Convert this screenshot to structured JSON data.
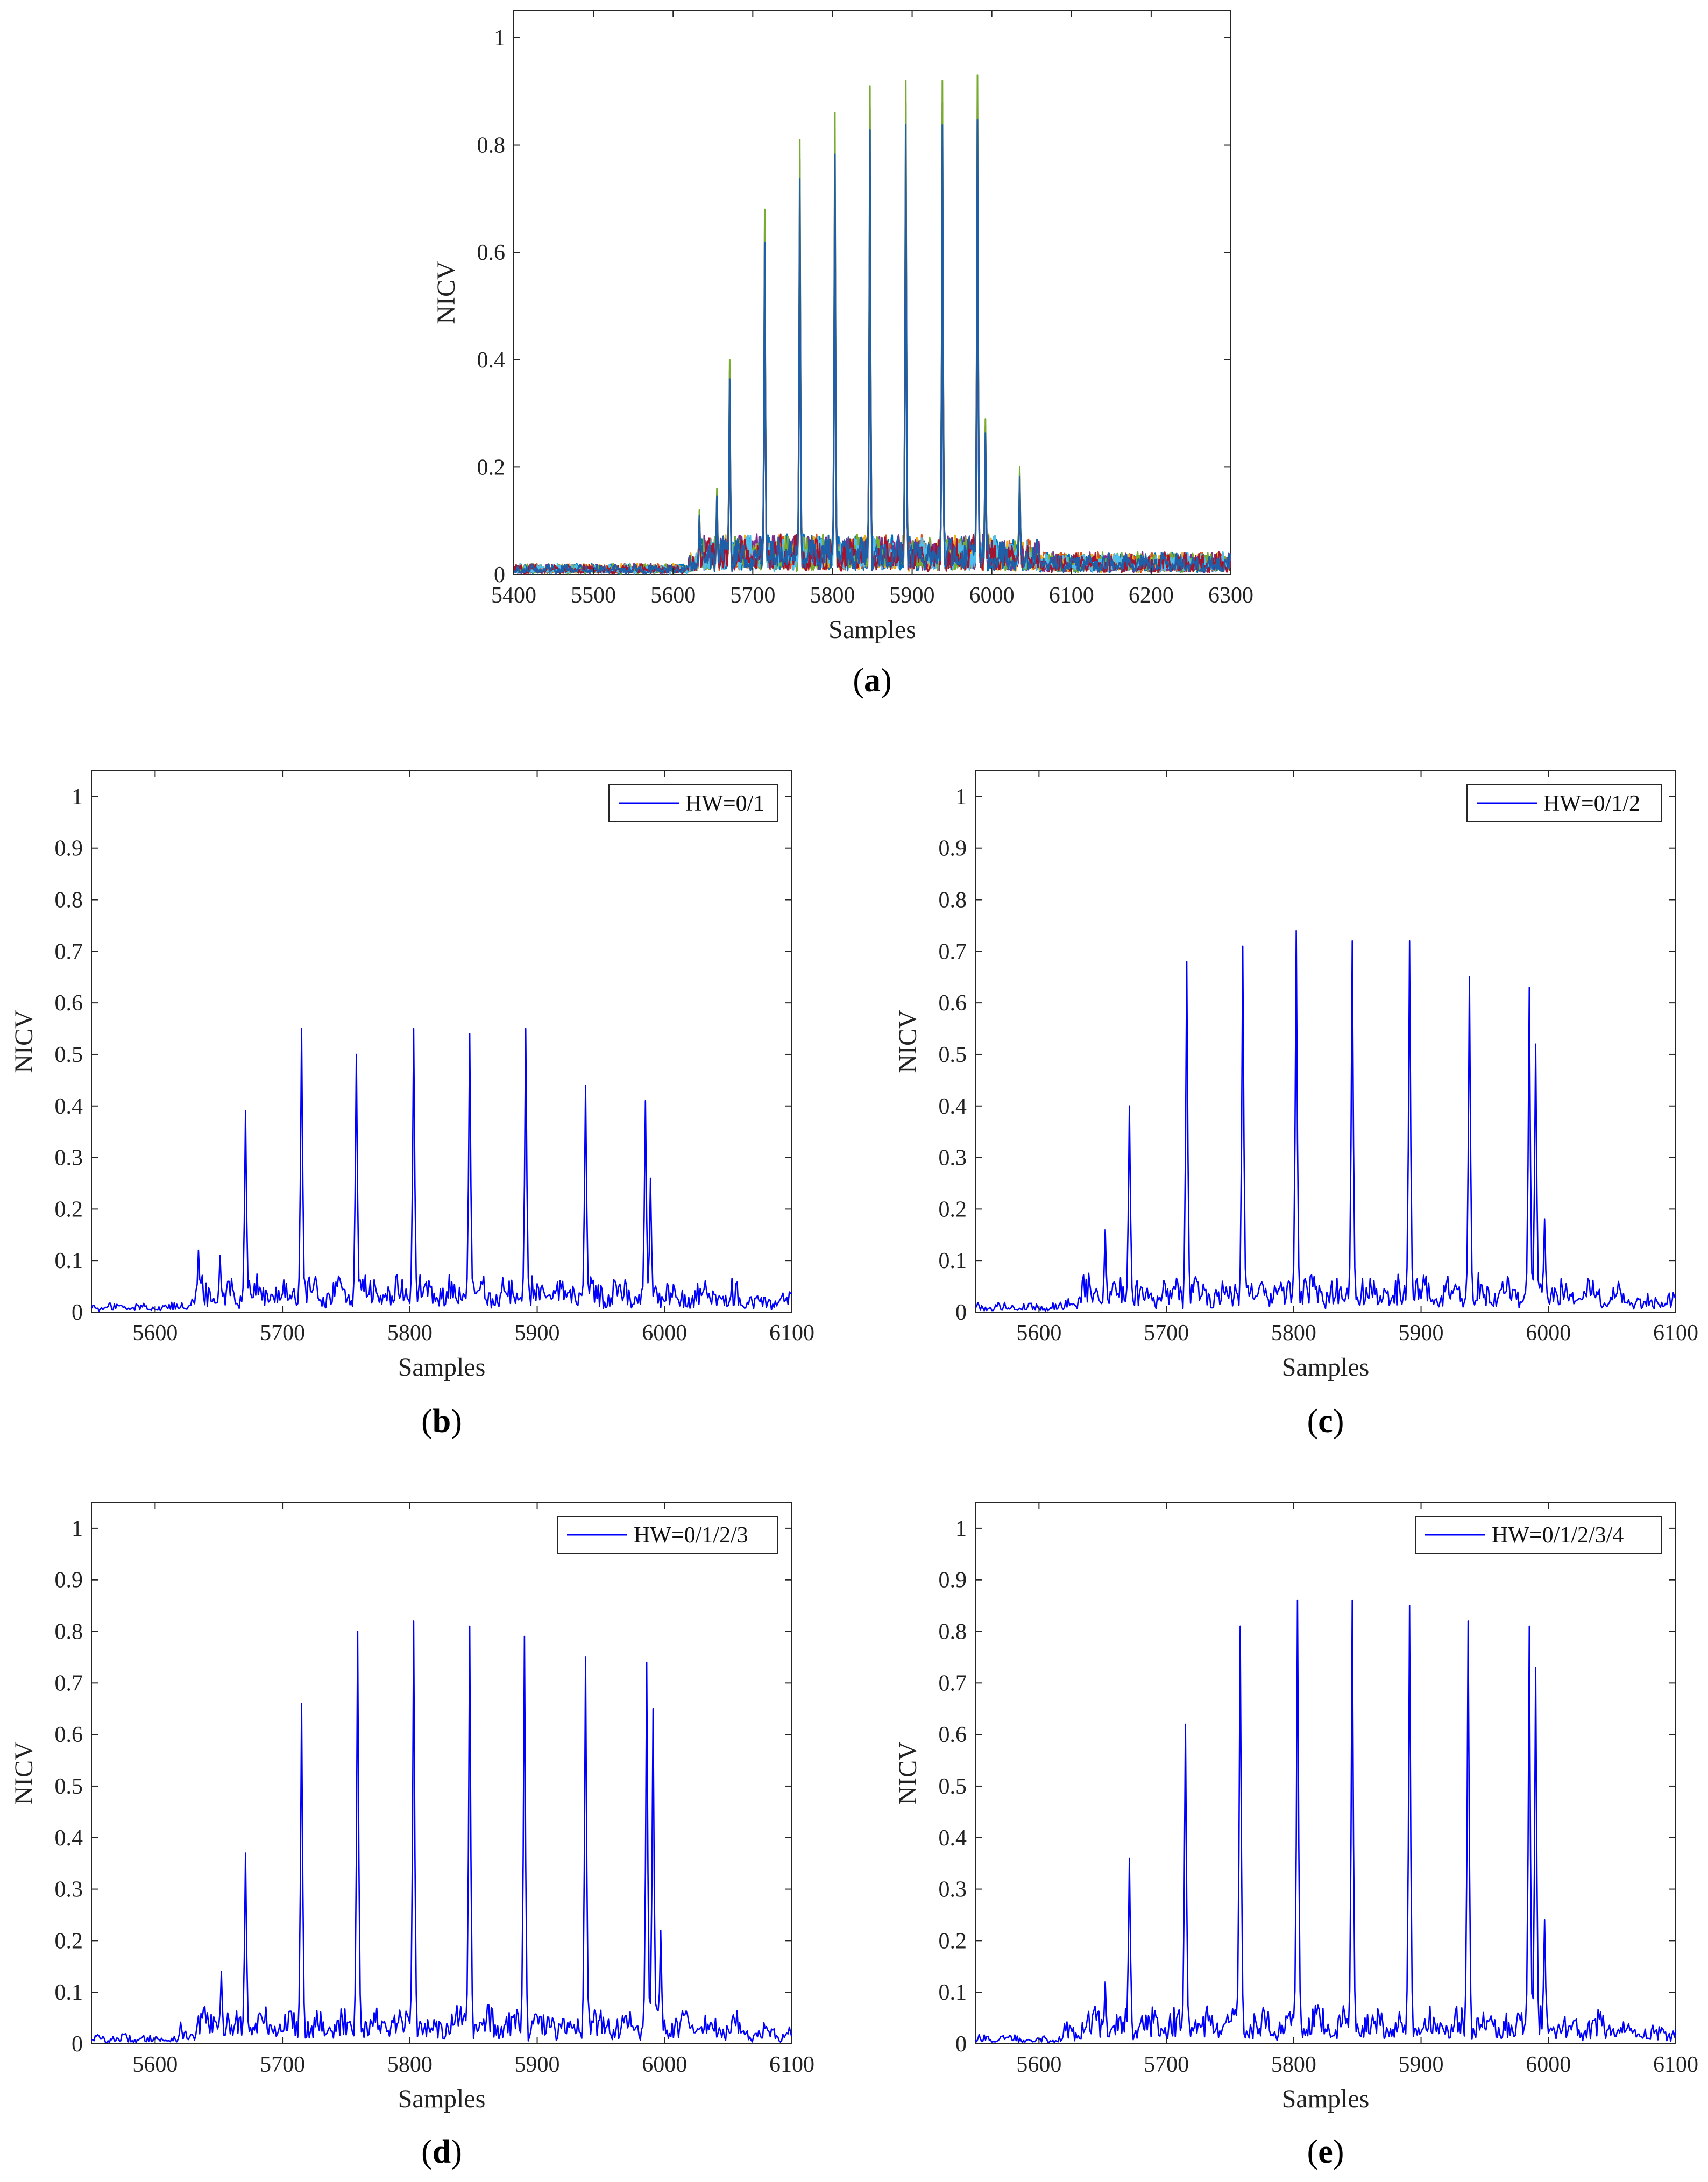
{
  "chart_data": [
    {
      "id": "a",
      "type": "line",
      "caption": "a",
      "xlabel": "Samples",
      "ylabel": "NICV",
      "xlim": [
        5400,
        6300
      ],
      "ylim": [
        0,
        1.05
      ],
      "xticks": [
        5400,
        5500,
        5600,
        5700,
        5800,
        5900,
        6000,
        6100,
        6200,
        6300
      ],
      "yticks": [
        0,
        0.2,
        0.4,
        0.6,
        0.8,
        1
      ],
      "ytick_labels": [
        "0",
        "0.2",
        "0.4",
        "0.6",
        "0.8",
        "1"
      ],
      "legend": null,
      "series_colors": [
        "#0072BD",
        "#D95319",
        "#EDB120",
        "#7E2F8E",
        "#77AC30",
        "#4DBEEE",
        "#A2142F",
        "#1f5fa8"
      ],
      "peaks": [
        {
          "x": 5633,
          "y": 0.12
        },
        {
          "x": 5655,
          "y": 0.16
        },
        {
          "x": 5671,
          "y": 0.4
        },
        {
          "x": 5715,
          "y": 0.68
        },
        {
          "x": 5759,
          "y": 0.81
        },
        {
          "x": 5803,
          "y": 0.86
        },
        {
          "x": 5847,
          "y": 0.91
        },
        {
          "x": 5892,
          "y": 0.92
        },
        {
          "x": 5938,
          "y": 0.92
        },
        {
          "x": 5982,
          "y": 0.93
        },
        {
          "x": 5992,
          "y": 0.29
        },
        {
          "x": 6035,
          "y": 0.2
        }
      ]
    },
    {
      "id": "b",
      "type": "line",
      "caption": "b",
      "xlabel": "Samples",
      "ylabel": "NICV",
      "xlim": [
        5550,
        6100
      ],
      "ylim": [
        0,
        1.05
      ],
      "xticks": [
        5600,
        5700,
        5800,
        5900,
        6000,
        6100
      ],
      "yticks": [
        0,
        0.1,
        0.2,
        0.3,
        0.4,
        0.5,
        0.6,
        0.7,
        0.8,
        0.9,
        1
      ],
      "ytick_labels": [
        "0",
        "0.1",
        "0.2",
        "0.3",
        "0.4",
        "0.5",
        "0.6",
        "0.7",
        "0.8",
        "0.9",
        "1"
      ],
      "legend": "HW=0/1",
      "series_colors": [
        "#0000ff"
      ],
      "peaks": [
        {
          "x": 5634,
          "y": 0.12
        },
        {
          "x": 5651,
          "y": 0.11
        },
        {
          "x": 5671,
          "y": 0.39
        },
        {
          "x": 5715,
          "y": 0.55
        },
        {
          "x": 5758,
          "y": 0.5
        },
        {
          "x": 5803,
          "y": 0.55
        },
        {
          "x": 5847,
          "y": 0.54
        },
        {
          "x": 5891,
          "y": 0.55
        },
        {
          "x": 5938,
          "y": 0.44
        },
        {
          "x": 5985,
          "y": 0.41
        },
        {
          "x": 5989,
          "y": 0.26
        }
      ]
    },
    {
      "id": "c",
      "type": "line",
      "caption": "c",
      "xlabel": "Samples",
      "ylabel": "NICV",
      "xlim": [
        5550,
        6100
      ],
      "ylim": [
        0,
        1.05
      ],
      "xticks": [
        5600,
        5700,
        5800,
        5900,
        6000,
        6100
      ],
      "yticks": [
        0,
        0.1,
        0.2,
        0.3,
        0.4,
        0.5,
        0.6,
        0.7,
        0.8,
        0.9,
        1
      ],
      "ytick_labels": [
        "0",
        "0.1",
        "0.2",
        "0.3",
        "0.4",
        "0.5",
        "0.6",
        "0.7",
        "0.8",
        "0.9",
        "1"
      ],
      "legend": "HW=0/1/2",
      "series_colors": [
        "#0000ff"
      ],
      "peaks": [
        {
          "x": 5652,
          "y": 0.16
        },
        {
          "x": 5671,
          "y": 0.4
        },
        {
          "x": 5716,
          "y": 0.68
        },
        {
          "x": 5760,
          "y": 0.71
        },
        {
          "x": 5802,
          "y": 0.74
        },
        {
          "x": 5846,
          "y": 0.72
        },
        {
          "x": 5891,
          "y": 0.72
        },
        {
          "x": 5938,
          "y": 0.65
        },
        {
          "x": 5985,
          "y": 0.63
        },
        {
          "x": 5990,
          "y": 0.52
        },
        {
          "x": 5997,
          "y": 0.18
        }
      ]
    },
    {
      "id": "d",
      "type": "line",
      "caption": "d",
      "xlabel": "Samples",
      "ylabel": "NICV",
      "xlim": [
        5550,
        6100
      ],
      "ylim": [
        0,
        1.05
      ],
      "xticks": [
        5600,
        5700,
        5800,
        5900,
        6000,
        6100
      ],
      "yticks": [
        0,
        0.1,
        0.2,
        0.3,
        0.4,
        0.5,
        0.6,
        0.7,
        0.8,
        0.9,
        1
      ],
      "ytick_labels": [
        "0",
        "0.1",
        "0.2",
        "0.3",
        "0.4",
        "0.5",
        "0.6",
        "0.7",
        "0.8",
        "0.9",
        "1"
      ],
      "legend": "HW=0/1/2/3",
      "series_colors": [
        "#0000ff"
      ],
      "peaks": [
        {
          "x": 5652,
          "y": 0.14
        },
        {
          "x": 5671,
          "y": 0.37
        },
        {
          "x": 5715,
          "y": 0.66
        },
        {
          "x": 5759,
          "y": 0.8
        },
        {
          "x": 5803,
          "y": 0.82
        },
        {
          "x": 5847,
          "y": 0.81
        },
        {
          "x": 5890,
          "y": 0.79
        },
        {
          "x": 5938,
          "y": 0.75
        },
        {
          "x": 5986,
          "y": 0.74
        },
        {
          "x": 5991,
          "y": 0.65
        },
        {
          "x": 5997,
          "y": 0.22
        }
      ]
    },
    {
      "id": "e",
      "type": "line",
      "caption": "e",
      "xlabel": "Samples",
      "ylabel": "NICV",
      "xlim": [
        5550,
        6100
      ],
      "ylim": [
        0,
        1.05
      ],
      "xticks": [
        5600,
        5700,
        5800,
        5900,
        6000,
        6100
      ],
      "yticks": [
        0,
        0.1,
        0.2,
        0.3,
        0.4,
        0.5,
        0.6,
        0.7,
        0.8,
        0.9,
        1
      ],
      "ytick_labels": [
        "0",
        "0.1",
        "0.2",
        "0.3",
        "0.4",
        "0.5",
        "0.6",
        "0.7",
        "0.8",
        "0.9",
        "1"
      ],
      "legend": "HW=0/1/2/3/4",
      "series_colors": [
        "#0000ff"
      ],
      "peaks": [
        {
          "x": 5652,
          "y": 0.12
        },
        {
          "x": 5671,
          "y": 0.36
        },
        {
          "x": 5715,
          "y": 0.62
        },
        {
          "x": 5758,
          "y": 0.81
        },
        {
          "x": 5803,
          "y": 0.86
        },
        {
          "x": 5846,
          "y": 0.86
        },
        {
          "x": 5891,
          "y": 0.85
        },
        {
          "x": 5937,
          "y": 0.82
        },
        {
          "x": 5985,
          "y": 0.81
        },
        {
          "x": 5990,
          "y": 0.73
        },
        {
          "x": 5997,
          "y": 0.24
        }
      ]
    }
  ]
}
